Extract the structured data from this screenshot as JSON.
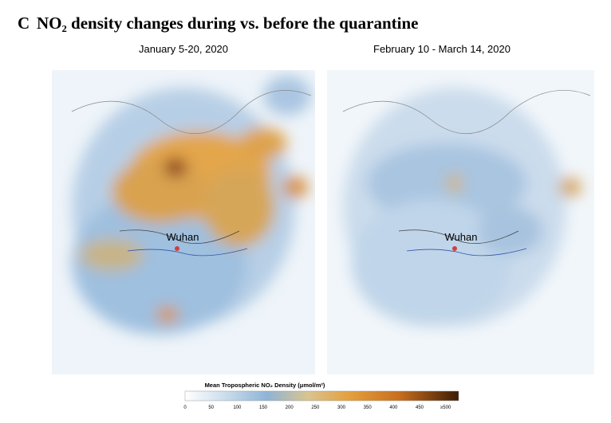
{
  "header": {
    "label": "C",
    "title": "NO₂ density changes during vs. before the quarantine"
  },
  "panels": [
    {
      "title": "January 5-20, 2020",
      "city": "Wuhan"
    },
    {
      "title": "February 10 - March 14, 2020",
      "city": "Wuhan"
    }
  ],
  "colorbar": {
    "title": "Mean Tropospheric NO₂ Density (μmol/m²)",
    "ticks": [
      0,
      50,
      100,
      150,
      200,
      250,
      300,
      350,
      400,
      450,
      "≥500"
    ]
  }
}
